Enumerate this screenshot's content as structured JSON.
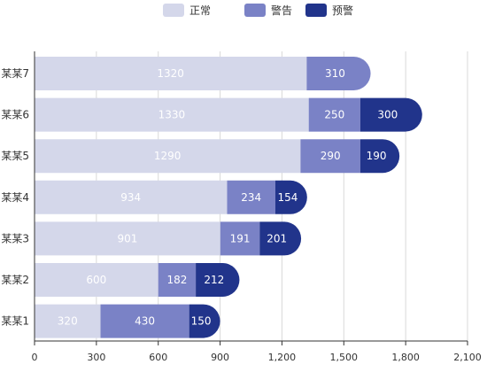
{
  "colors": {
    "normal": "#d4d7ea",
    "warning": "#7a82c6",
    "alert": "#21348b",
    "grid": "#d9d9d9",
    "axis": "#333333"
  },
  "chart_data": {
    "type": "bar",
    "orientation": "horizontal",
    "stacked": true,
    "categories": [
      "某某1",
      "某某2",
      "某某3",
      "某某4",
      "某某5",
      "某某6",
      "某某7"
    ],
    "series": [
      {
        "name": "正常",
        "values": [
          320,
          600,
          901,
          934,
          1290,
          1330,
          1320
        ]
      },
      {
        "name": "警告",
        "values": [
          430,
          182,
          191,
          234,
          290,
          250,
          310
        ]
      },
      {
        "name": "预警",
        "values": [
          150,
          212,
          201,
          154,
          190,
          300,
          0
        ]
      }
    ],
    "xlim": [
      0,
      2100
    ],
    "x_ticks": [
      "0",
      "300",
      "600",
      "900",
      "1,200",
      "1,500",
      "1,800",
      "2,100"
    ],
    "legend_position": "top-center",
    "grid": "vertical"
  }
}
